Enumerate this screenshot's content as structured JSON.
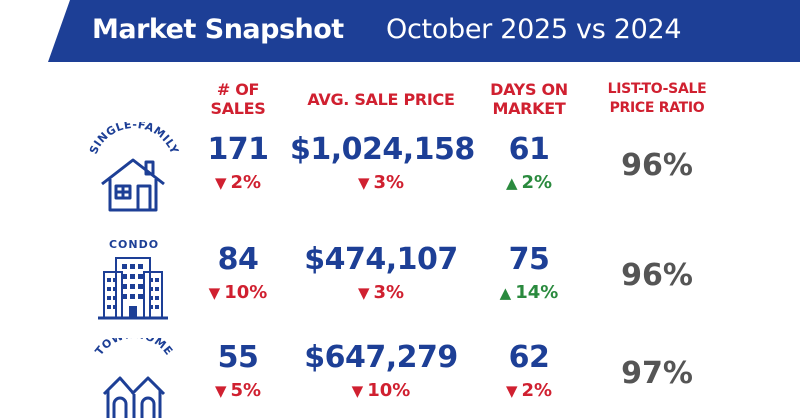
{
  "header": {
    "title": "Market Snapshot",
    "period": "October 2025 vs 2024"
  },
  "columns": {
    "sales": "# OF\nSALES",
    "price": "AVG. SALE PRICE",
    "days": "DAYS ON\nMARKET",
    "ratio": "LIST-TO-SALE\nPRICE RATIO"
  },
  "rows": [
    {
      "type_label": "SINGLE-FAMILY",
      "icon": "house-icon",
      "sales": "171",
      "sales_change": "2%",
      "sales_dir": "down",
      "price": "$1,024,158",
      "price_change": "3%",
      "price_dir": "down",
      "days": "61",
      "days_change": "2%",
      "days_dir": "up",
      "ratio": "96%"
    },
    {
      "type_label": "CONDO",
      "icon": "condo-building-icon",
      "sales": "84",
      "sales_change": "10%",
      "sales_dir": "down",
      "price": "$474,107",
      "price_change": "3%",
      "price_dir": "down",
      "days": "75",
      "days_change": "14%",
      "days_dir": "up",
      "ratio": "96%"
    },
    {
      "type_label": "TOWNHOME",
      "icon": "townhome-icon",
      "sales": "55",
      "sales_change": "5%",
      "sales_dir": "down",
      "price": "$647,279",
      "price_change": "10%",
      "price_dir": "down",
      "days": "62",
      "days_change": "2%",
      "days_dir": "down",
      "ratio": "97%"
    }
  ],
  "colors": {
    "brand_blue": "#1d3f96",
    "decrease_red": "#d02030",
    "increase_green": "#2a8a3e",
    "ratio_gray": "#555555"
  }
}
